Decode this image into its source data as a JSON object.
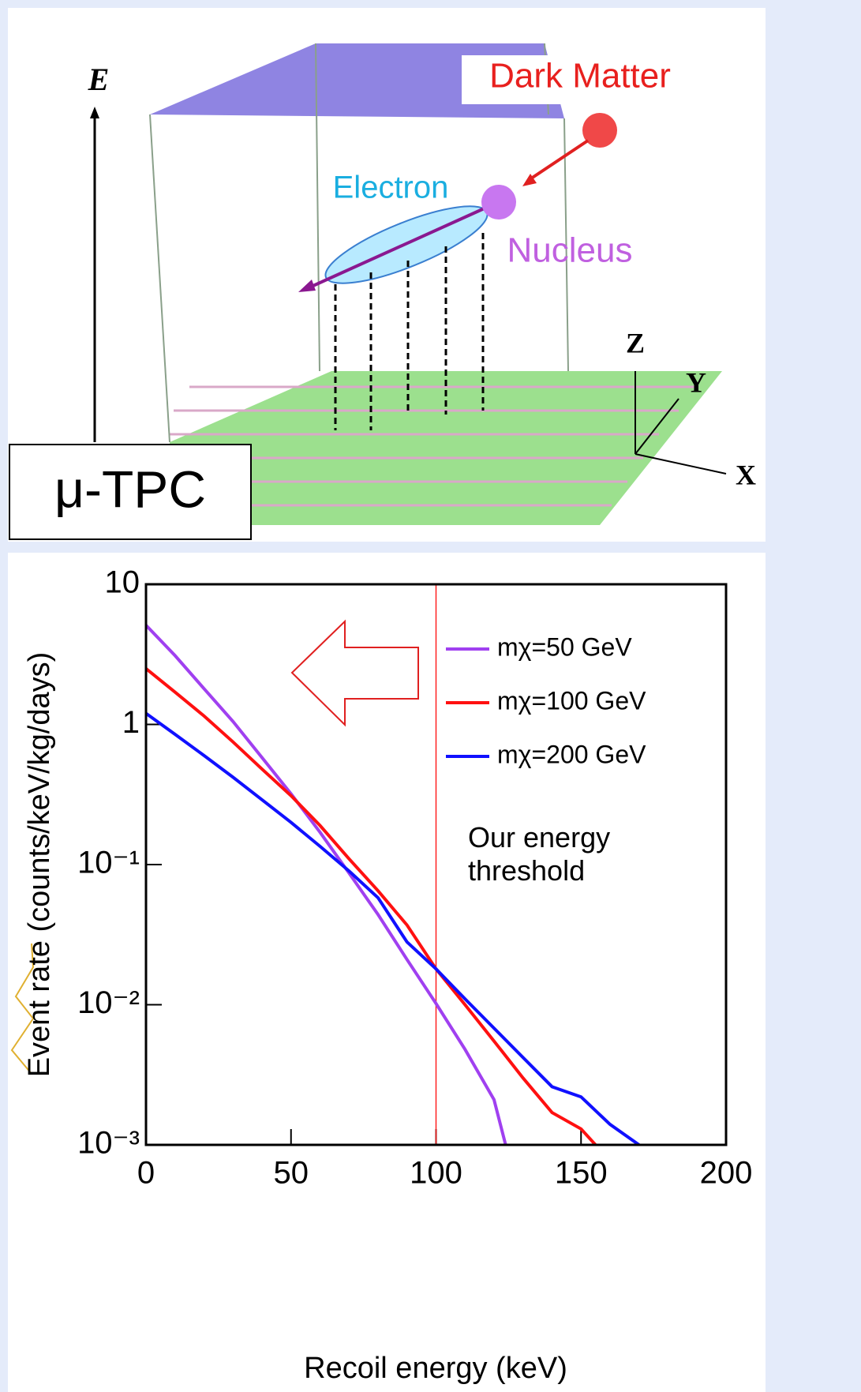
{
  "diagram": {
    "axis_label": "E",
    "dark_matter": "Dark Matter",
    "electron": "Electron",
    "nucleus": "Nucleus",
    "axes": [
      "Z",
      "Y",
      "X"
    ],
    "detector": "μ-TPC"
  },
  "chart_data": {
    "type": "line",
    "log_y": true,
    "x_label": "Recoil energy (keV)",
    "y_label": "Event rate (counts/keV/kg/days)",
    "xlim": [
      0,
      200
    ],
    "xticks": [
      0,
      50,
      100,
      150,
      200
    ],
    "ylim": [
      0.001,
      10
    ],
    "yticks": [
      {
        "value": 0.001,
        "label": "10⁻³"
      },
      {
        "value": 0.01,
        "label": "10⁻²"
      },
      {
        "value": 0.1,
        "label": "10⁻¹"
      },
      1,
      10
    ],
    "series": [
      {
        "name": "mχ=50 GeV",
        "color": "#a040f0",
        "x": [
          0,
          10,
          20,
          30,
          40,
          50,
          60,
          70,
          80,
          90,
          100,
          110,
          120,
          124
        ],
        "values": [
          5.1,
          3.1,
          1.8,
          1.05,
          0.58,
          0.32,
          0.17,
          0.087,
          0.044,
          0.021,
          0.0102,
          0.0048,
          0.0021,
          0.001
        ]
      },
      {
        "name": "mχ=100 GeV",
        "color": "#ff1010",
        "x": [
          0,
          10,
          20,
          30,
          40,
          50,
          60,
          70,
          80,
          90,
          100,
          110,
          120,
          130,
          140,
          150,
          155
        ],
        "values": [
          2.5,
          1.7,
          1.15,
          0.75,
          0.48,
          0.31,
          0.19,
          0.11,
          0.065,
          0.037,
          0.018,
          0.01,
          0.0055,
          0.003,
          0.0017,
          0.0013,
          0.001
        ]
      },
      {
        "name": "mχ=200 GeV",
        "color": "#1010ff",
        "x": [
          0,
          10,
          20,
          30,
          40,
          50,
          60,
          70,
          80,
          90,
          100,
          110,
          120,
          130,
          140,
          150,
          160,
          170
        ],
        "values": [
          1.2,
          0.85,
          0.6,
          0.42,
          0.29,
          0.2,
          0.135,
          0.09,
          0.058,
          0.028,
          0.018,
          0.011,
          0.0068,
          0.0042,
          0.0026,
          0.0022,
          0.0014,
          0.001
        ]
      }
    ],
    "threshold": {
      "x": 100,
      "color": "#ff2020",
      "label": "Our energy\nthreshold"
    }
  }
}
